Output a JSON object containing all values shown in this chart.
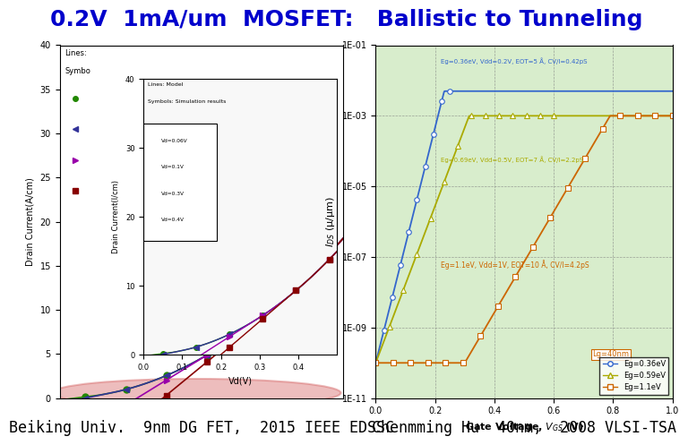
{
  "title": "0.2V  1mA/um  MOSFET:   Ballistic to Tunneling",
  "title_color": "#0000CC",
  "title_fontsize": 18,
  "background_color": "#ffffff",
  "left_caption": "Beiking Univ.  9nm DG FET,  2015 IEEE EDSSC",
  "right_caption": "Chenmming Hu  40nm,  2008 VLSI-TSA",
  "caption_fontsize": 12,
  "caption_color": "#000000",
  "left_bg": "#ffffff",
  "right_bg": "#d8edcc",
  "ellipse_color": "#cc4444",
  "ellipse_alpha": 0.35,
  "left_colors": [
    "#228800",
    "#333399",
    "#9900aa",
    "#880000"
  ],
  "left_vd_labels": [
    "Vd=0.06V",
    "Vd=0.1V",
    "Vd=0.3V",
    "Vd=0.4V"
  ],
  "right_colors_lines": [
    "#0055cc",
    "#999900",
    "#cc6600"
  ],
  "right_colors_markers": [
    "#4499ff",
    "#ccaa00",
    "#ff8800"
  ]
}
